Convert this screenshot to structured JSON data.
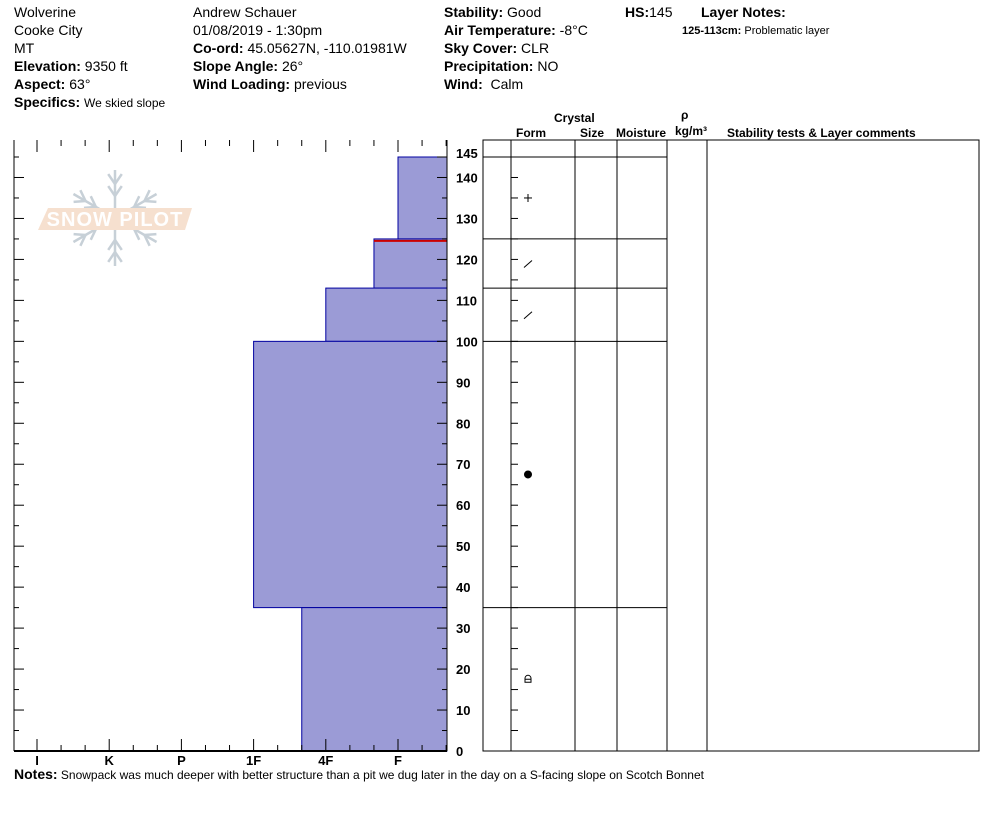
{
  "header": {
    "col1": {
      "location": "Wolverine",
      "region": "Cooke City",
      "state": "MT",
      "elevation_label": "Elevation:",
      "elevation": "9350 ft",
      "aspect_label": "Aspect:",
      "aspect": "63°",
      "specifics_label": "Specifics:",
      "specifics": "We skied slope"
    },
    "col2": {
      "observer": "Andrew Schauer",
      "datetime": "01/08/2019 - 1:30pm",
      "coord_label": "Co-ord:",
      "coord": "45.05627N, -110.01981W",
      "slope_label": "Slope Angle:",
      "slope": "26°",
      "wind_loading_label": "Wind Loading:",
      "wind_loading": "previous"
    },
    "col3": {
      "stability_label": "Stability:",
      "stability": "Good",
      "air_temp_label": "Air Temperature:",
      "air_temp": "-8°C",
      "sky_label": "Sky Cover:",
      "sky": "CLR",
      "precip_label": "Precipitation:",
      "precip": "NO",
      "wind_label": "Wind:",
      "wind": "Calm"
    },
    "hs_label": "HS:",
    "hs": "145",
    "layer_notes_label": "Layer Notes:",
    "layer_note_range": "125-113cm:",
    "layer_note_text": "Problematic layer"
  },
  "table_headers": {
    "crystal": "Crystal",
    "form": "Form",
    "size": "Size",
    "moisture": "Moisture",
    "rho": "ρ",
    "density_unit": "kg/m³",
    "comments": "Stability tests & Layer comments"
  },
  "logo_text": "SNOW PILOT",
  "notes_label": "Notes:",
  "notes": "Snowpack was much deeper with better structure than a pit we dug later in the day on a S-facing slope on Scotch Bonnet",
  "colors": {
    "layer_fill": "#9b9bd6",
    "layer_edge": "#0000a0",
    "weak_layer": "#cc0000"
  },
  "chart_data": {
    "type": "bar",
    "orientation": "horizontal-step",
    "x_tick_labels": [
      "I",
      "K",
      "P",
      "1F",
      "4F",
      "F"
    ],
    "y_tick_labels": [
      "0",
      "10",
      "20",
      "30",
      "40",
      "50",
      "60",
      "70",
      "80",
      "90",
      "100",
      "110",
      "120",
      "130",
      "140",
      "145"
    ],
    "ylim": [
      0,
      145
    ],
    "ylabel": "",
    "layers": [
      {
        "top": 145,
        "bottom": 125,
        "hardness": "F",
        "hardness_index": 5,
        "form_icon": "precipitation-particles-plus"
      },
      {
        "top": 125,
        "bottom": 113,
        "hardness": "F-",
        "hardness_index": 4.667,
        "form_icon": "decomposing-fragments-slash",
        "weak_layer": true
      },
      {
        "top": 113,
        "bottom": 100,
        "hardness": "4F",
        "hardness_index": 4,
        "form_icon": "decomposing-fragments-slash"
      },
      {
        "top": 100,
        "bottom": 35,
        "hardness": "1F",
        "hardness_index": 3,
        "form_icon": "rounded-grains-dot"
      },
      {
        "top": 35,
        "bottom": 0,
        "hardness": "4F-",
        "hardness_index": 3.667,
        "form_icon": "rounding-facets"
      }
    ]
  }
}
